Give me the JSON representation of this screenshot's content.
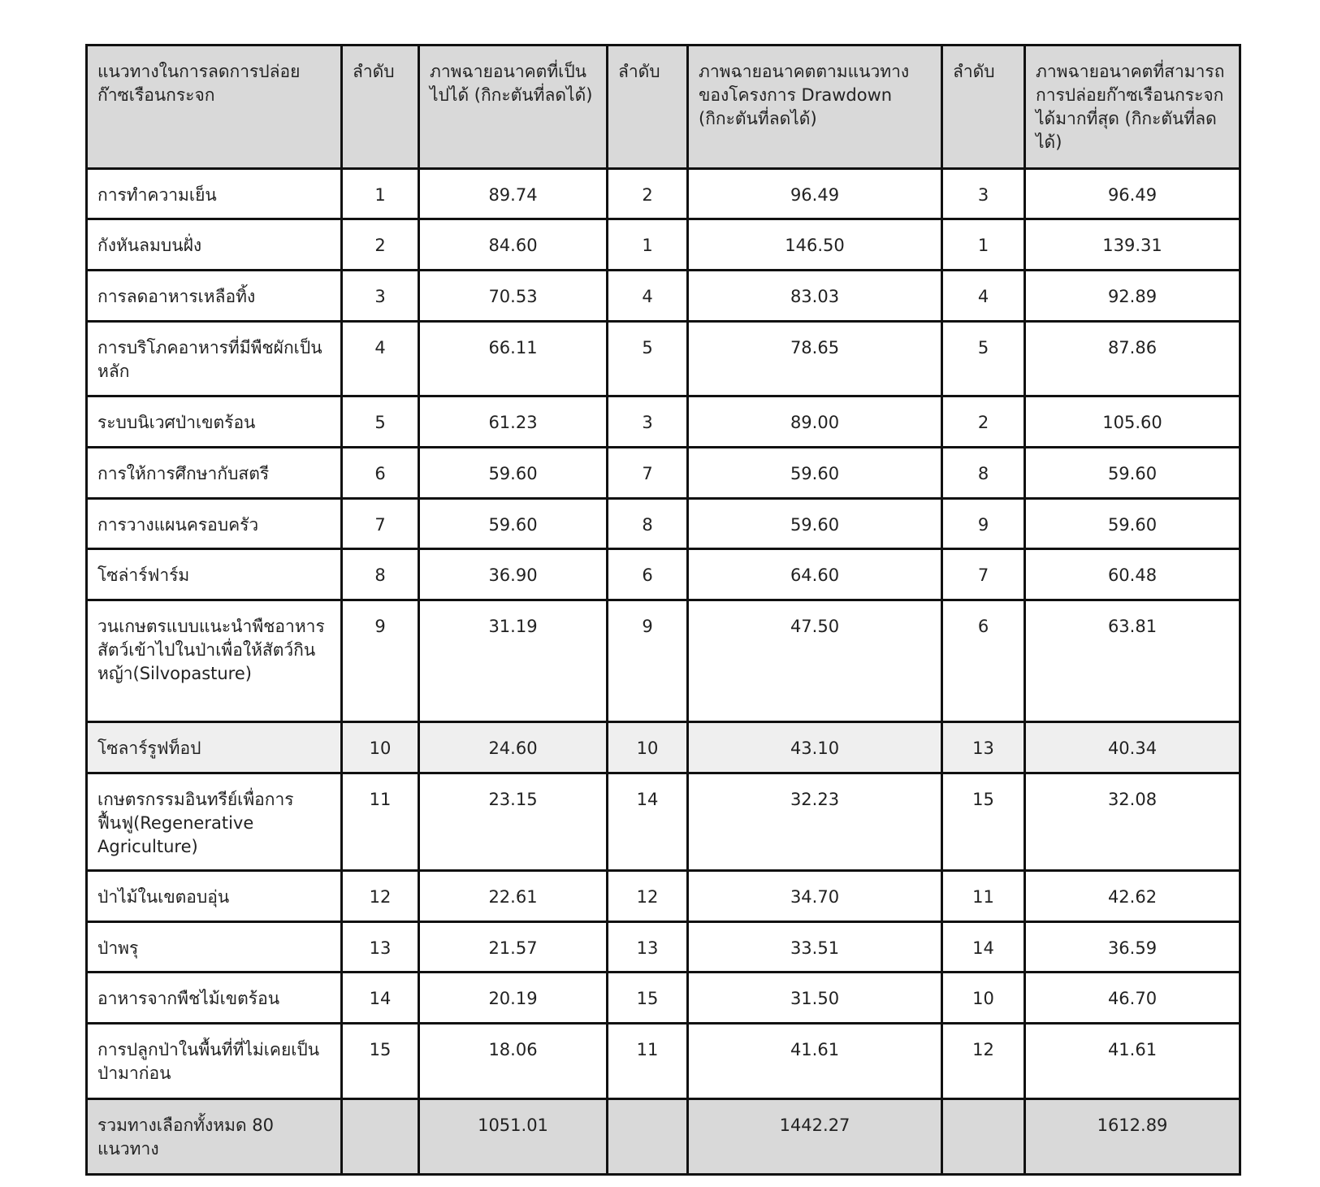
{
  "table": {
    "headers": [
      "แนวทางในการลดการปล่อยก๊าซเรือนกระจก",
      "ลำดับ",
      "ภาพฉายอนาคตที่เป็นไปได้ (กิกะตันที่ลดได้)",
      "ลำดับ",
      "ภาพฉายอนาคตตามแนวทางของโครงการ Drawdown (กิกะตันที่ลดได้)",
      "ลำดับ",
      "ภาพฉายอนาคตที่สามารถการปล่อยก๊าซเรือนกระจกได้มากที่สุด (กิกะตันที่ลดได้)"
    ],
    "rows": [
      [
        "การทำความเย็น",
        "1",
        "89.74",
        "2",
        "96.49",
        "3",
        "96.49"
      ],
      [
        "กังหันลมบนฝั่ง",
        "2",
        "84.60",
        "1",
        "146.50",
        "1",
        "139.31"
      ],
      [
        "การลดอาหารเหลือทิ้ง",
        "3",
        "70.53",
        "4",
        "83.03",
        "4",
        "92.89"
      ],
      [
        "การบริโภคอาหารที่มีพืชผักเป็นหลัก",
        "4",
        "66.11",
        "5",
        "78.65",
        "5",
        "87.86"
      ],
      [
        "ระบบนิเวศป่าเขตร้อน",
        "5",
        "61.23",
        "3",
        "89.00",
        "2",
        "105.60"
      ],
      [
        "การให้การศึกษากับสตรี",
        "6",
        "59.60",
        "7",
        "59.60",
        "8",
        "59.60"
      ],
      [
        "การวางแผนครอบครัว",
        "7",
        "59.60",
        "8",
        "59.60",
        "9",
        "59.60"
      ],
      [
        "โซล่าร์ฟาร์ม",
        "8",
        "36.90",
        "6",
        "64.60",
        "7",
        "60.48"
      ],
      [
        "วนเกษตรแบบแนะนำพืชอาหารสัตว์เข้าไปในป่าเพื่อให้สัตว์กินหญ้า(Silvopasture)",
        "9",
        "31.19",
        "9",
        "47.50",
        "6",
        "63.81"
      ],
      [
        "โซลาร์รูฟท็อป",
        "10",
        "24.60",
        "10",
        "43.10",
        "13",
        "40.34"
      ],
      [
        "เกษตรกรรมอินทรีย์เพื่อการฟื้นฟู(Regenerative Agriculture)",
        "11",
        "23.15",
        "14",
        "32.23",
        "15",
        "32.08"
      ],
      [
        "ป่าไม้ในเขตอบอุ่น",
        "12",
        "22.61",
        "12",
        "34.70",
        "11",
        "42.62"
      ],
      [
        "ป่าพรุ",
        "13",
        "21.57",
        "13",
        "33.51",
        "14",
        "36.59"
      ],
      [
        "อาหารจากพืชไม้เขตร้อน",
        "14",
        "20.19",
        "15",
        "31.50",
        "10",
        "46.70"
      ],
      [
        "การปลูกป่าในพื้นที่ที่ไม่เคยเป็นป่ามาก่อน",
        "15",
        "18.06",
        "11",
        "41.61",
        "12",
        "41.61"
      ]
    ],
    "highlighted_row": 9,
    "total": [
      "รวมทางเลือกทั้งหมด 80 แนวทาง",
      "",
      "1051.01",
      "",
      "1442.27",
      "",
      "1612.89"
    ]
  },
  "colors": {
    "header_bg": "#d9d9d9",
    "highlight_bg": "#efefef",
    "border": "#111111"
  }
}
